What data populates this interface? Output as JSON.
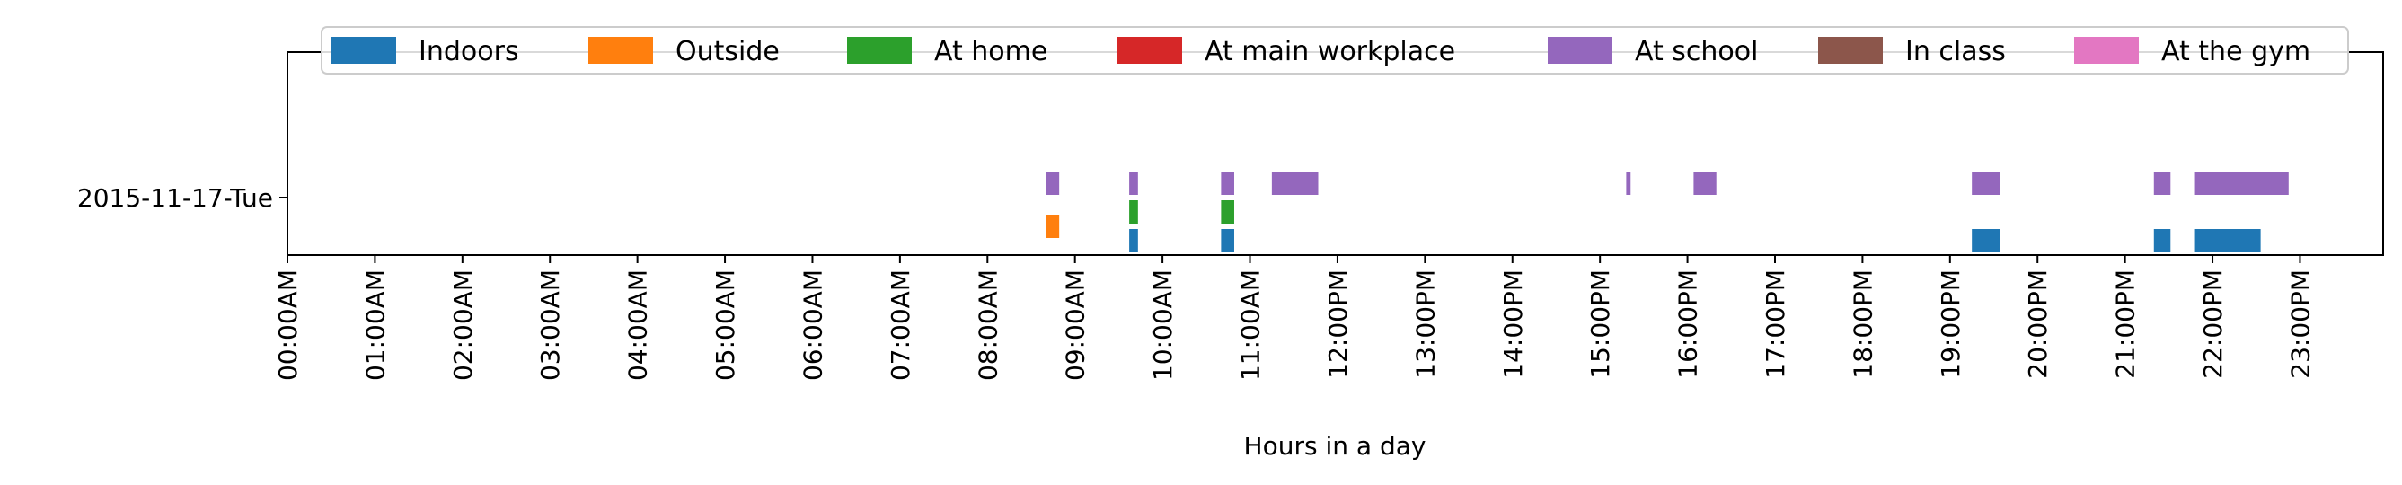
{
  "chart_data": {
    "type": "bar",
    "orientation": "horizontal-timeline",
    "xlabel": "Hours in a day",
    "xlim": [
      0,
      23.95
    ],
    "x_ticks": [
      "00:00AM",
      "01:00AM",
      "02:00AM",
      "03:00AM",
      "04:00AM",
      "05:00AM",
      "06:00AM",
      "07:00AM",
      "08:00AM",
      "09:00AM",
      "10:00AM",
      "11:00AM",
      "12:00PM",
      "13:00PM",
      "14:00PM",
      "15:00PM",
      "16:00PM",
      "17:00PM",
      "18:00PM",
      "19:00PM",
      "20:00PM",
      "21:00PM",
      "22:00PM",
      "23:00PM"
    ],
    "categories": [
      "2015-11-17-Tue"
    ],
    "legend_position": "top",
    "grid": false,
    "series": [
      {
        "name": "Indoors",
        "color": "#1f77b4",
        "intervals": [
          [
            9.62,
            9.72
          ],
          [
            10.67,
            10.82
          ],
          [
            19.25,
            19.57
          ],
          [
            21.33,
            21.52
          ],
          [
            21.8,
            22.55
          ]
        ]
      },
      {
        "name": "Outside",
        "color": "#ff7f0e",
        "intervals": [
          [
            8.67,
            8.82
          ]
        ]
      },
      {
        "name": "At home",
        "color": "#2ca02c",
        "intervals": [
          [
            9.62,
            9.72
          ],
          [
            10.67,
            10.82
          ]
        ]
      },
      {
        "name": "At main workplace",
        "color": "#d62728",
        "intervals": []
      },
      {
        "name": "At school",
        "color": "#9467bd",
        "intervals": [
          [
            8.67,
            8.82
          ],
          [
            9.62,
            9.72
          ],
          [
            10.67,
            10.82
          ],
          [
            11.25,
            11.78
          ],
          [
            15.3,
            15.35
          ],
          [
            16.07,
            16.33
          ],
          [
            19.25,
            19.57
          ],
          [
            21.33,
            21.52
          ],
          [
            21.8,
            22.87
          ]
        ]
      },
      {
        "name": "In class",
        "color": "#8c564b",
        "intervals": []
      },
      {
        "name": "At the gym",
        "color": "#e377c2",
        "intervals": []
      }
    ]
  }
}
